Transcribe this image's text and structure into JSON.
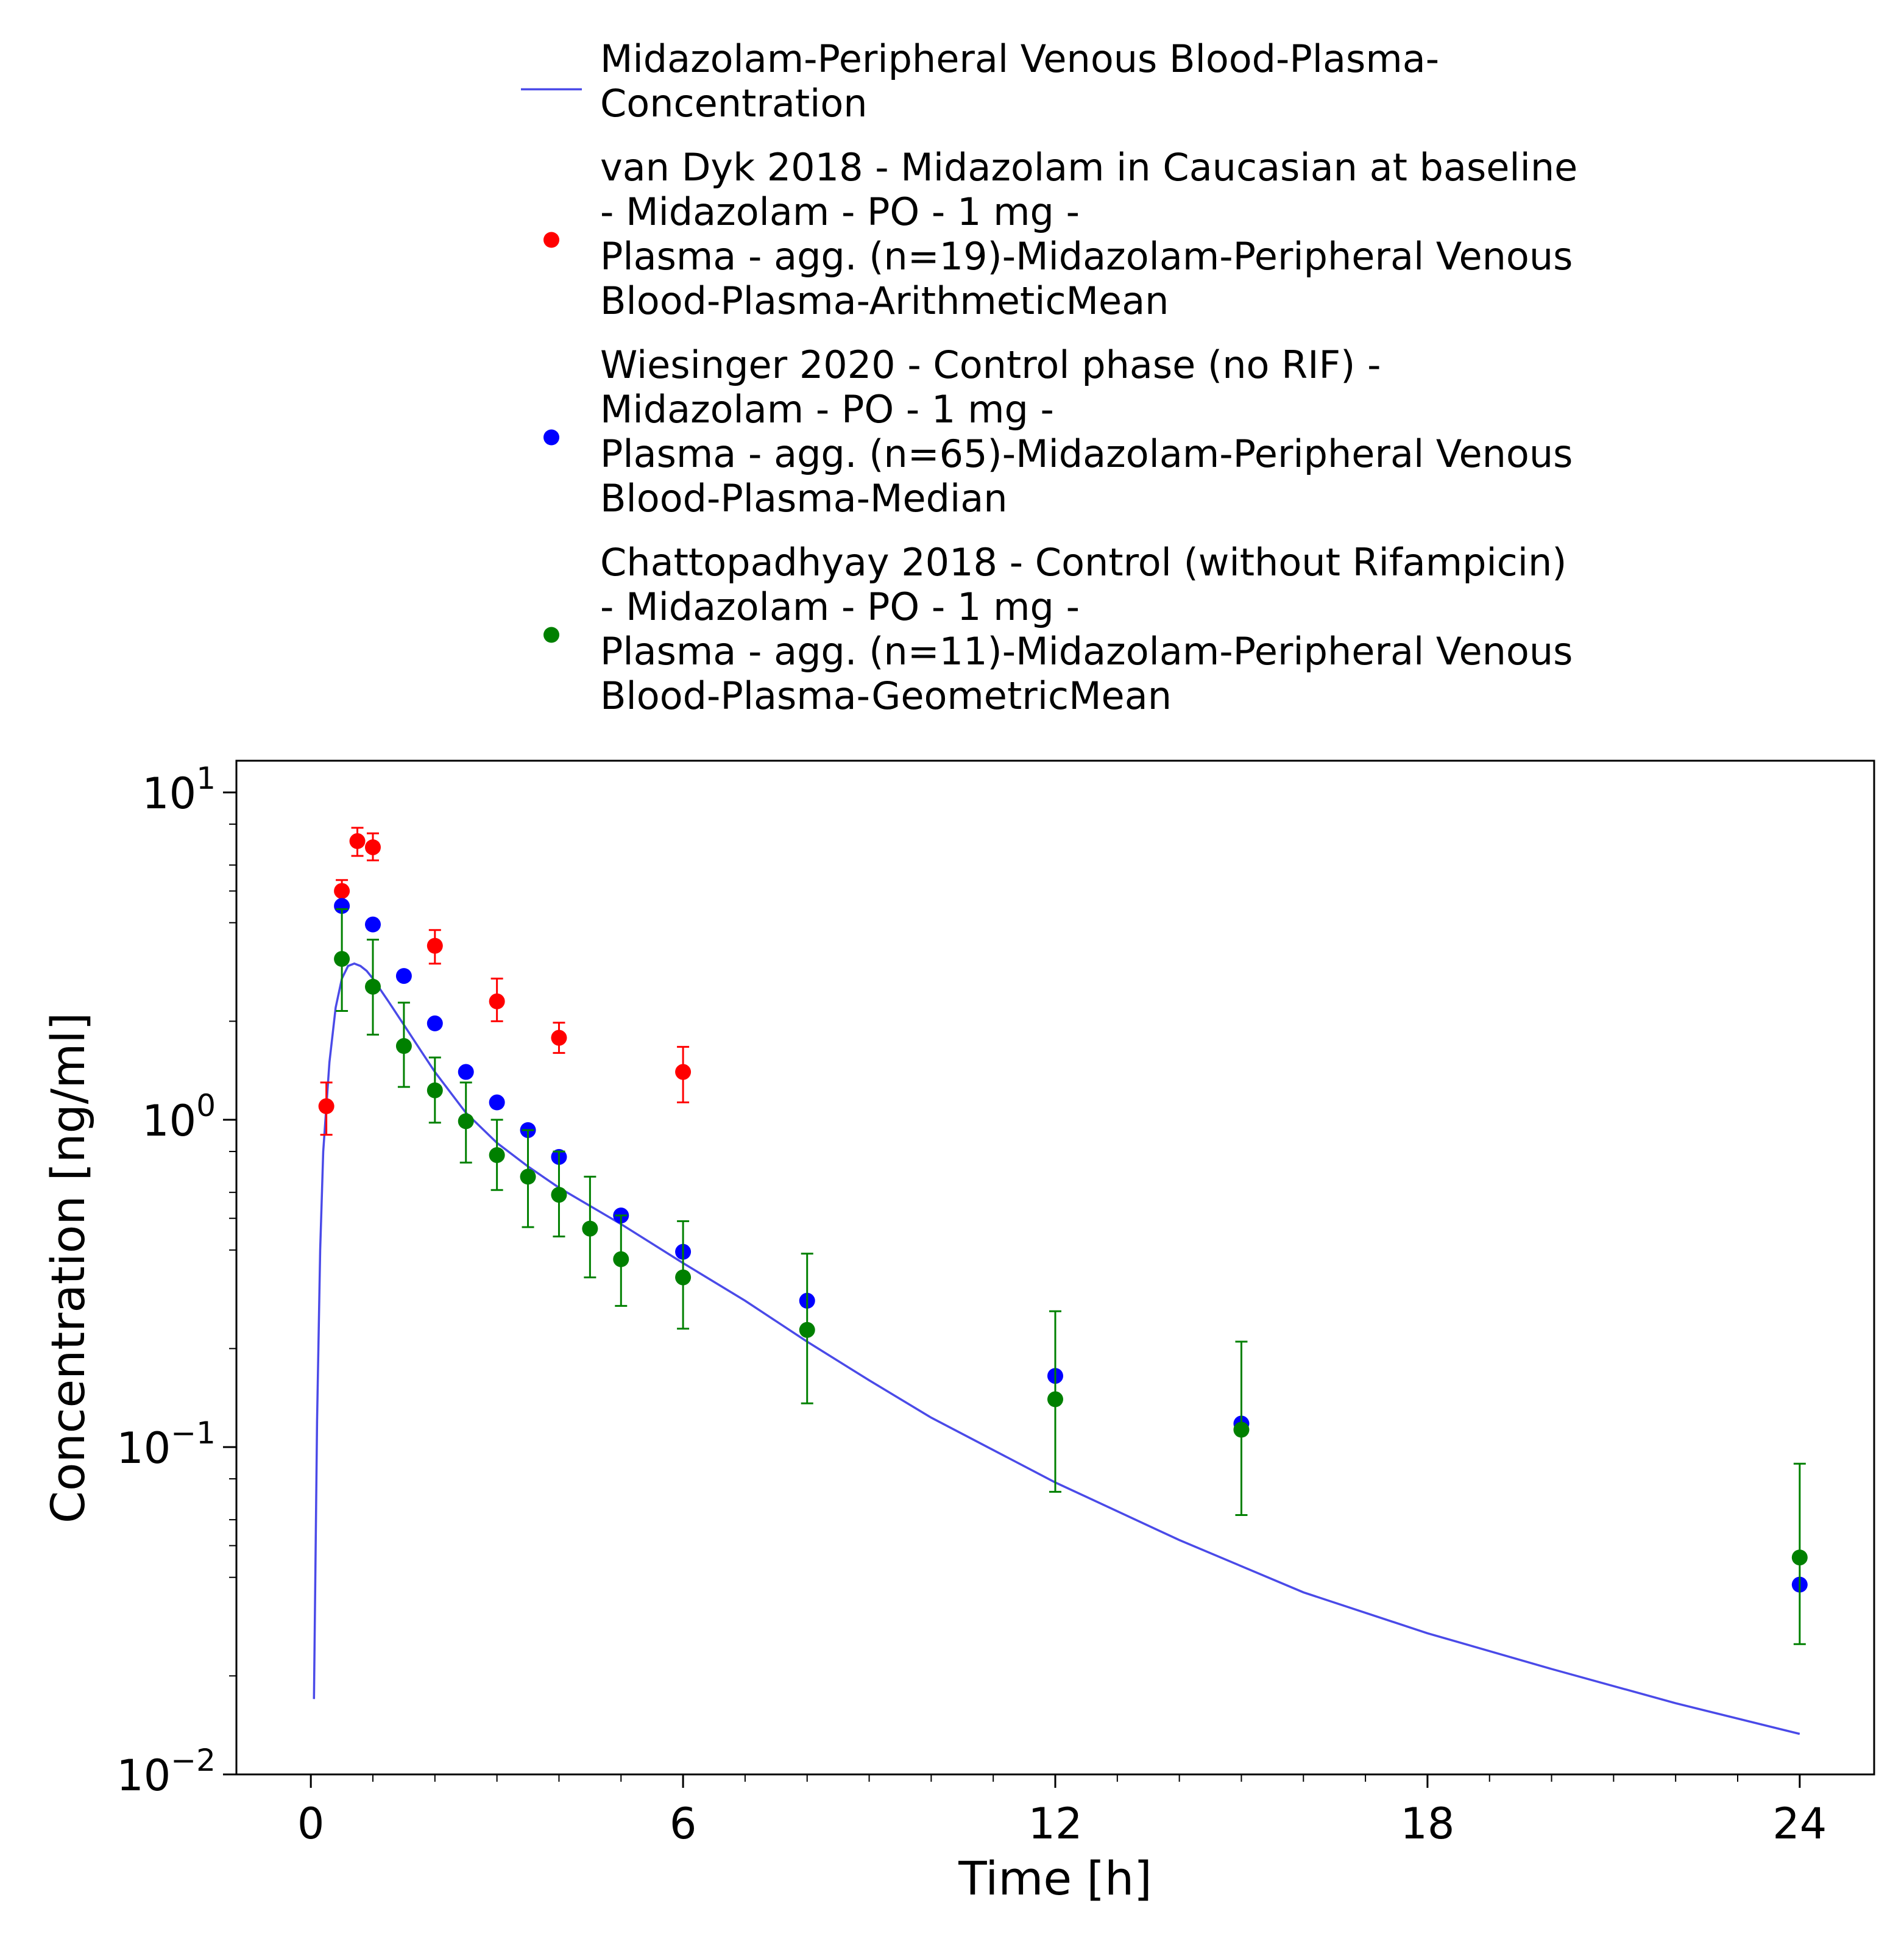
{
  "chart_data": {
    "type": "scatter",
    "xlabel": "Time [h]",
    "ylabel": "Concentration [ng/ml]",
    "xlim": [
      -1.2,
      25.2
    ],
    "ylim": [
      0.01,
      12.5
    ],
    "y_scale": "log",
    "grid": false,
    "legend_position": "top",
    "x_ticks": [
      "0",
      "6",
      "12",
      "18",
      "24"
    ],
    "x_tick_values": [
      0,
      6,
      12,
      18,
      24
    ],
    "y_ticks": [
      {
        "base": "10",
        "exp": "−2",
        "value": 0.01
      },
      {
        "base": "10",
        "exp": "−1",
        "value": 0.1
      },
      {
        "base": "10",
        "exp": "0",
        "value": 1
      },
      {
        "base": "10",
        "exp": "1",
        "value": 10
      }
    ],
    "series": [
      {
        "name": "Midazolam-Peripheral Venous Blood-Plasma-Concentration",
        "legend_lines": [
          "Midazolam-Peripheral Venous Blood-Plasma-",
          "Concentration"
        ],
        "kind": "line",
        "color": "#4a4ae8",
        "x": [
          0.05,
          0.1,
          0.15,
          0.2,
          0.3,
          0.4,
          0.5,
          0.6,
          0.7,
          0.8,
          0.9,
          1.0,
          1.25,
          1.5,
          1.75,
          2.0,
          2.5,
          3.0,
          3.5,
          4.0,
          5.0,
          6.0,
          7.0,
          8.0,
          9.0,
          10.0,
          12.0,
          14.0,
          16.0,
          18.0,
          20.0,
          22.0,
          24.0
        ],
        "y": [
          0.017,
          0.12,
          0.4,
          0.8,
          1.5,
          2.2,
          2.7,
          2.95,
          3.0,
          2.95,
          2.85,
          2.7,
          2.3,
          1.95,
          1.65,
          1.4,
          1.05,
          0.85,
          0.72,
          0.62,
          0.48,
          0.365,
          0.28,
          0.21,
          0.16,
          0.123,
          0.078,
          0.052,
          0.036,
          0.027,
          0.021,
          0.0165,
          0.0133
        ]
      },
      {
        "name": "van Dyk 2018 - Midazolam in Caucasian at baseline - Midazolam - PO - 1 mg - Plasma - agg. (n=19)-Midazolam-Peripheral Venous Blood-Plasma-ArithmeticMean",
        "legend_lines": [
          "van Dyk 2018 - Midazolam in Caucasian at baseline",
          "- Midazolam - PO - 1 mg -",
          "Plasma - agg. (n=19)-Midazolam-Peripheral Venous",
          "Blood-Plasma-ArithmeticMean"
        ],
        "kind": "scatter",
        "color": "#ff0000",
        "x": [
          0.25,
          0.5,
          0.75,
          1.0,
          2.0,
          3.0,
          4.0,
          6.0
        ],
        "y": [
          1.1,
          5.0,
          7.1,
          6.8,
          3.4,
          2.3,
          1.78,
          1.4
        ],
        "y_err_low": [
          0.9,
          4.6,
          6.4,
          6.2,
          3.0,
          2.0,
          1.6,
          1.13
        ],
        "y_err_high": [
          1.3,
          5.4,
          7.8,
          7.5,
          3.8,
          2.7,
          1.98,
          1.67
        ]
      },
      {
        "name": "Wiesinger 2020 - Control phase (no RIF) - Midazolam - PO - 1 mg - Plasma - agg. (n=65)-Midazolam-Peripheral Venous Blood-Plasma-Median",
        "legend_lines": [
          "Wiesinger 2020 - Control phase (no RIF) -",
          "Midazolam - PO - 1 mg -",
          "Plasma - agg. (n=65)-Midazolam-Peripheral Venous",
          "Blood-Plasma-Median"
        ],
        "kind": "scatter",
        "color": "#0000ff",
        "x": [
          0.5,
          1.0,
          1.5,
          2.0,
          2.5,
          3.0,
          3.5,
          4.0,
          5.0,
          6.0,
          8.0,
          12.0,
          15.0,
          24.0
        ],
        "y": [
          4.5,
          3.95,
          2.75,
          1.97,
          1.4,
          1.13,
          0.93,
          0.77,
          0.51,
          0.395,
          0.28,
          0.165,
          0.118,
          0.038
        ]
      },
      {
        "name": "Chattopadhyay 2018 - Control (without Rifampicin) - Midazolam - PO - 1 mg - Plasma - agg. (n=11)-Midazolam-Peripheral Venous Blood-Plasma-GeometricMean",
        "legend_lines": [
          "Chattopadhyay 2018 - Control (without Rifampicin)",
          "- Midazolam - PO - 1 mg -",
          "Plasma - agg. (n=11)-Midazolam-Peripheral Venous",
          "Blood-Plasma-GeometricMean"
        ],
        "kind": "scatter",
        "color": "#008000",
        "x": [
          0.5,
          1.0,
          1.5,
          2.0,
          2.5,
          3.0,
          3.5,
          4.0,
          4.5,
          5.0,
          6.0,
          8.0,
          12.0,
          15.0,
          24.0
        ],
        "y": [
          3.1,
          2.55,
          1.68,
          1.23,
          0.99,
          0.78,
          0.67,
          0.59,
          0.465,
          0.375,
          0.33,
          0.228,
          0.14,
          0.113,
          0.046
        ],
        "y_err_low": [
          2.15,
          1.82,
          1.26,
          0.98,
          0.74,
          0.61,
          0.47,
          0.44,
          0.33,
          0.27,
          0.23,
          0.136,
          0.073,
          0.062,
          0.025
        ],
        "y_err_high": [
          4.4,
          3.55,
          2.28,
          1.55,
          1.3,
          1.0,
          0.93,
          0.8,
          0.67,
          0.51,
          0.49,
          0.39,
          0.26,
          0.21,
          0.089
        ]
      }
    ]
  }
}
